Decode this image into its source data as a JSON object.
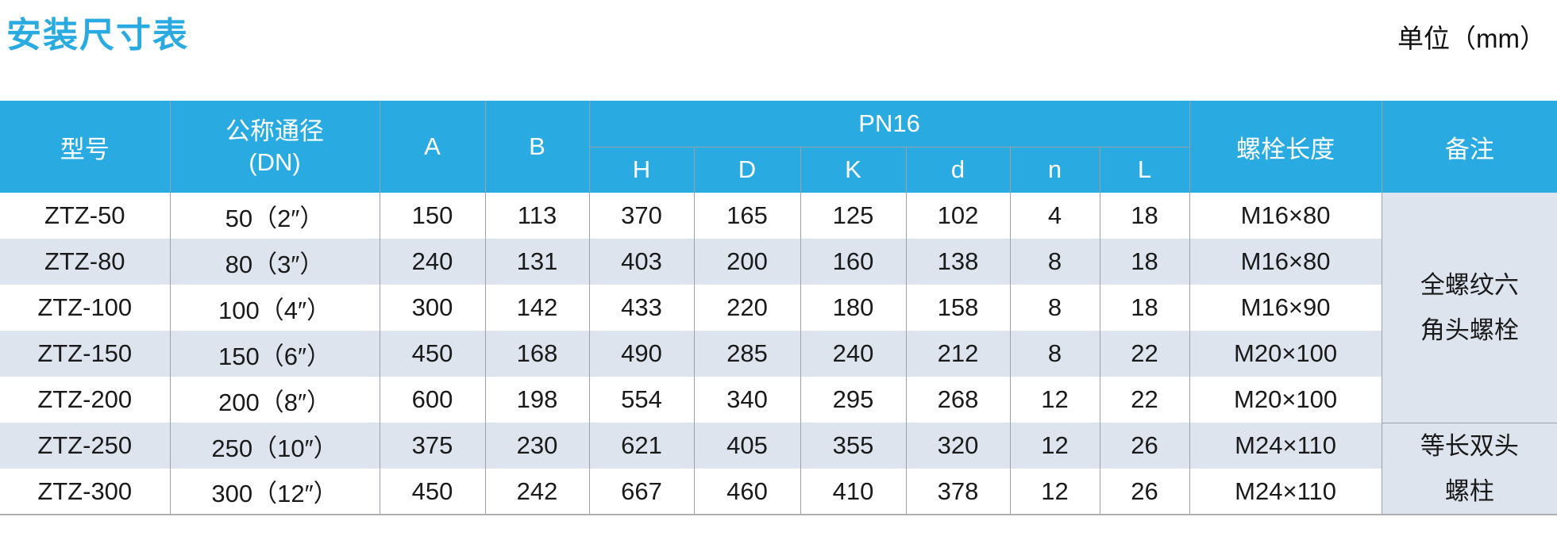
{
  "page": {
    "title": "安装尺寸表",
    "unit_label": "单位（mm）"
  },
  "colors": {
    "header_blue": "#29abe2",
    "row_alt": "#dde4ee",
    "grid_line": "#9aa1a8",
    "title_blue": "#29abe2"
  },
  "table": {
    "headers": {
      "model": "型号",
      "dn_line1": "公称通径",
      "dn_line2": "(DN)",
      "a": "A",
      "b": "B",
      "pn16": "PN16",
      "sub": [
        "H",
        "D",
        "K",
        "d",
        "n",
        "L"
      ],
      "bolt_length": "螺栓长度",
      "remarks": "备注"
    },
    "rows": [
      {
        "model": "ZTZ-50",
        "dn": "50（2″）",
        "a": "150",
        "b": "113",
        "h": "370",
        "d_outer": "165",
        "k": "125",
        "d": "102",
        "n": "4",
        "l": "18",
        "bolt": "M16×80"
      },
      {
        "model": "ZTZ-80",
        "dn": "80（3″）",
        "a": "240",
        "b": "131",
        "h": "403",
        "d_outer": "200",
        "k": "160",
        "d": "138",
        "n": "8",
        "l": "18",
        "bolt": "M16×80"
      },
      {
        "model": "ZTZ-100",
        "dn": "100（4″）",
        "a": "300",
        "b": "142",
        "h": "433",
        "d_outer": "220",
        "k": "180",
        "d": "158",
        "n": "8",
        "l": "18",
        "bolt": "M16×90"
      },
      {
        "model": "ZTZ-150",
        "dn": "150（6″）",
        "a": "450",
        "b": "168",
        "h": "490",
        "d_outer": "285",
        "k": "240",
        "d": "212",
        "n": "8",
        "l": "22",
        "bolt": "M20×100"
      },
      {
        "model": "ZTZ-200",
        "dn": "200（8″）",
        "a": "600",
        "b": "198",
        "h": "554",
        "d_outer": "340",
        "k": "295",
        "d": "268",
        "n": "12",
        "l": "22",
        "bolt": "M20×100"
      },
      {
        "model": "ZTZ-250",
        "dn": "250（10″）",
        "a": "375",
        "b": "230",
        "h": "621",
        "d_outer": "405",
        "k": "355",
        "d": "320",
        "n": "12",
        "l": "26",
        "bolt": "M24×110"
      },
      {
        "model": "ZTZ-300",
        "dn": "300（12″）",
        "a": "450",
        "b": "242",
        "h": "667",
        "d_outer": "460",
        "k": "410",
        "d": "378",
        "n": "12",
        "l": "26",
        "bolt": "M24×110"
      }
    ],
    "remark_groups": [
      {
        "lines": [
          "全螺纹六",
          "角头螺栓"
        ],
        "rows": 5
      },
      {
        "lines": [
          "等长双头",
          "螺柱"
        ],
        "rows": 2
      }
    ]
  }
}
